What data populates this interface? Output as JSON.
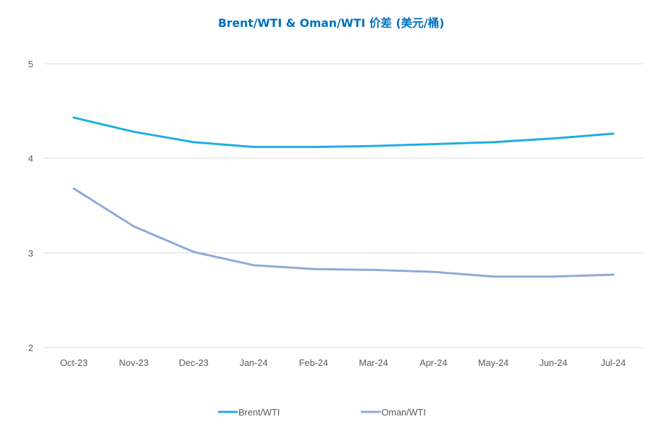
{
  "chart_data": {
    "type": "line",
    "title": "Brent/WTI & Oman/WTI 价差 (美元/桶)",
    "xlabel": "",
    "ylabel": "",
    "categories": [
      "Oct-23",
      "Nov-23",
      "Dec-23",
      "Jan-24",
      "Feb-24",
      "Mar-24",
      "Apr-24",
      "May-24",
      "Jun-24",
      "Jul-24"
    ],
    "ylim": [
      2,
      5
    ],
    "yticks": [
      2,
      3,
      4,
      5
    ],
    "grid": true,
    "legend_position": "bottom",
    "series": [
      {
        "name": "Brent/WTI",
        "color": "#1CAEE4",
        "values": [
          4.43,
          4.28,
          4.17,
          4.12,
          4.12,
          4.13,
          4.15,
          4.17,
          4.21,
          4.26
        ]
      },
      {
        "name": "Oman/WTI",
        "color": "#8EA9DB",
        "values": [
          3.68,
          3.28,
          3.01,
          2.87,
          2.83,
          2.82,
          2.8,
          2.75,
          2.75,
          2.77
        ]
      }
    ],
    "colors": {
      "title": "#0070C0",
      "grid": "#D9D9D9",
      "axis": "#D9D9D9",
      "text": "#595959"
    }
  }
}
